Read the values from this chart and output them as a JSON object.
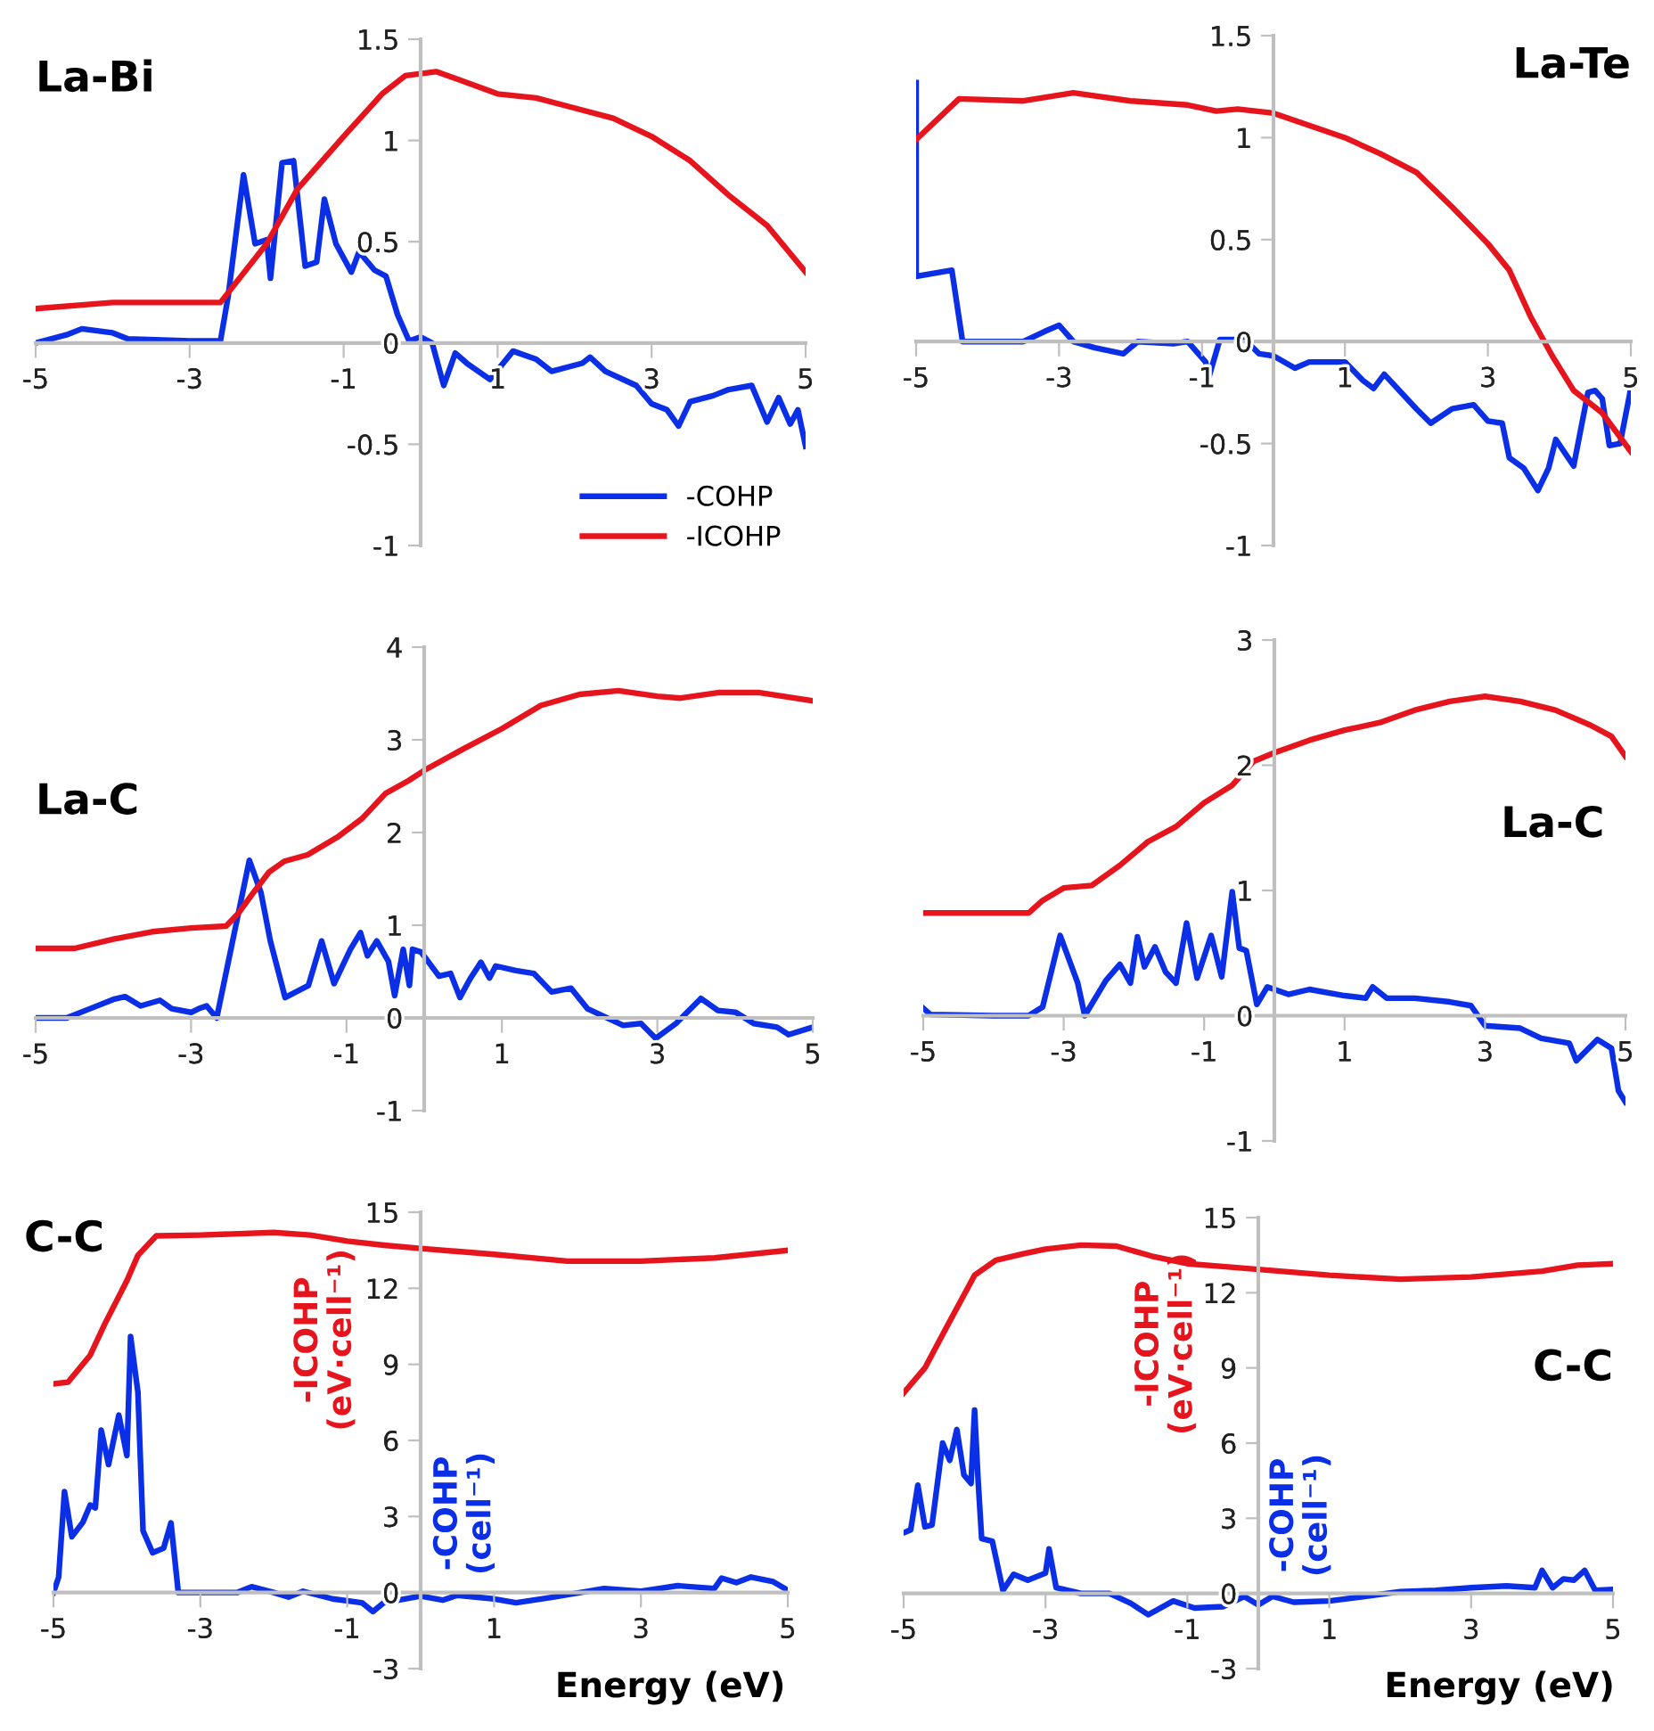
{
  "chart_data": [
    {
      "type": "line",
      "title": "La-Bi",
      "xlim": [
        -5,
        5
      ],
      "ylim": [
        -1,
        1.5
      ],
      "xticks": [
        -5,
        -3,
        -1,
        1,
        3,
        5
      ],
      "yticks": [
        -1,
        -0.5,
        0,
        0.5,
        1,
        1.5
      ],
      "legend": "bottom right",
      "series": [
        {
          "name": "-COHP",
          "color": "#0a2fe6",
          "x": [
            -5,
            -4.6,
            -4.4,
            -4,
            -3.8,
            -3,
            -2.6,
            -2.5,
            -2.3,
            -2.15,
            -2.0,
            -1.95,
            -1.8,
            -1.65,
            -1.5,
            -1.35,
            -1.25,
            -1.1,
            -0.9,
            -0.8,
            -0.6,
            -0.45,
            -0.3,
            -0.15,
            0,
            0.15,
            0.3,
            0.45,
            0.6,
            0.9,
            1.2,
            1.5,
            1.7,
            2.1,
            2.2,
            2.4,
            2.8,
            3.0,
            3.2,
            3.35,
            3.5,
            3.8,
            4.0,
            4.3,
            4.5,
            4.65,
            4.8,
            4.9,
            5
          ],
          "values": [
            0,
            0.04,
            0.07,
            0.05,
            0.02,
            0.01,
            0.01,
            0.23,
            0.83,
            0.49,
            0.51,
            0.32,
            0.89,
            0.9,
            0.38,
            0.4,
            0.71,
            0.49,
            0.35,
            0.45,
            0.36,
            0.33,
            0.14,
            0.01,
            0.03,
            0,
            -0.21,
            -0.05,
            -0.1,
            -0.18,
            -0.04,
            -0.08,
            -0.14,
            -0.1,
            -0.07,
            -0.14,
            -0.21,
            -0.3,
            -0.33,
            -0.41,
            -0.29,
            -0.26,
            -0.23,
            -0.21,
            -0.39,
            -0.27,
            -0.4,
            -0.33,
            -0.51
          ]
        },
        {
          "name": "-ICOHP",
          "color": "#e6141c",
          "x": [
            -5,
            -4,
            -2.6,
            -2,
            -1.6,
            -1,
            -0.5,
            -0.2,
            0.2,
            0.5,
            1,
            1.5,
            2,
            2.5,
            3,
            3.5,
            4,
            4.5,
            5
          ],
          "values": [
            0.17,
            0.2,
            0.2,
            0.49,
            0.76,
            1.02,
            1.23,
            1.32,
            1.34,
            1.3,
            1.23,
            1.21,
            1.16,
            1.11,
            1.02,
            0.9,
            0.73,
            0.58,
            0.35
          ]
        }
      ]
    },
    {
      "type": "line",
      "title": "La-Te",
      "xlim": [
        -5,
        5
      ],
      "ylim": [
        -1,
        1.5
      ],
      "xticks": [
        -5,
        -3,
        -1,
        1,
        3,
        5
      ],
      "yticks": [
        -1,
        -0.5,
        0,
        0.5,
        1,
        1.5
      ],
      "series": [
        {
          "color": "#0a2fe6",
          "x": [
            -5,
            -5,
            -4.5,
            -4.35,
            -3.5,
            -3.2,
            -3.0,
            -2.8,
            -2.5,
            -2.1,
            -1.9,
            -1.4,
            -1.2,
            -0.95,
            -0.9,
            -0.75,
            -0.4,
            -0.2,
            0,
            0.3,
            0.5,
            1.0,
            1.25,
            1.4,
            1.55,
            2.0,
            2.2,
            2.5,
            2.8,
            3.0,
            3.2,
            3.3,
            3.5,
            3.7,
            3.85,
            3.95,
            4.2,
            4.4,
            4.5,
            4.6,
            4.7,
            4.85,
            5.0
          ],
          "values": [
            1.27,
            0.32,
            0.35,
            0,
            0,
            0.05,
            0.08,
            0,
            -0.03,
            -0.06,
            0,
            -0.01,
            0,
            -0.1,
            -0.17,
            0.01,
            0.01,
            -0.06,
            -0.07,
            -0.13,
            -0.1,
            -0.1,
            -0.19,
            -0.23,
            -0.16,
            -0.33,
            -0.4,
            -0.33,
            -0.31,
            -0.39,
            -0.4,
            -0.57,
            -0.62,
            -0.73,
            -0.62,
            -0.48,
            -0.61,
            -0.25,
            -0.24,
            -0.28,
            -0.51,
            -0.5,
            -0.23
          ]
        },
        {
          "color": "#e6141c",
          "x": [
            -5,
            -4.4,
            -3.5,
            -2.8,
            -2,
            -1.2,
            -0.8,
            -0.5,
            0,
            0.5,
            1.0,
            1.5,
            2.0,
            2.5,
            3.0,
            3.3,
            3.6,
            3.9,
            4.2,
            4.6,
            5.0
          ],
          "values": [
            0.99,
            1.19,
            1.18,
            1.22,
            1.18,
            1.16,
            1.13,
            1.14,
            1.12,
            1.06,
            1.0,
            0.92,
            0.83,
            0.66,
            0.48,
            0.35,
            0.12,
            -0.07,
            -0.24,
            -0.35,
            -0.54
          ]
        }
      ]
    },
    {
      "type": "line",
      "title": "La-C",
      "xlim": [
        -5,
        5
      ],
      "ylim": [
        -1,
        4
      ],
      "xticks": [
        -5,
        -3,
        -1,
        1,
        3,
        5
      ],
      "yticks": [
        -1,
        0,
        1,
        2,
        3,
        4
      ],
      "series": [
        {
          "color": "#0a2fe6",
          "x": [
            -5,
            -4.6,
            -4.3,
            -4.0,
            -3.85,
            -3.65,
            -3.4,
            -3.25,
            -3.0,
            -2.9,
            -2.8,
            -2.67,
            -2.25,
            -2.1,
            -1.98,
            -1.79,
            -1.49,
            -1.32,
            -1.16,
            -0.95,
            -0.82,
            -0.73,
            -0.61,
            -0.46,
            -0.38,
            -0.27,
            -0.19,
            -0.15,
            -0.04,
            0.19,
            0.34,
            0.46,
            0.59,
            0.73,
            0.84,
            0.92,
            1.18,
            1.41,
            1.64,
            1.89,
            2.1,
            2.56,
            2.79,
            2.98,
            3.24,
            3.56,
            3.78,
            4.01,
            4.24,
            4.54,
            4.69,
            5.0
          ],
          "values": [
            0,
            0,
            0.1,
            0.2,
            0.23,
            0.13,
            0.19,
            0.1,
            0.06,
            0.1,
            0.13,
            0.0,
            1.7,
            1.35,
            0.83,
            0.22,
            0.35,
            0.83,
            0.37,
            0.74,
            0.92,
            0.67,
            0.83,
            0.61,
            0.24,
            0.74,
            0.35,
            0.74,
            0.71,
            0.45,
            0.48,
            0.22,
            0.42,
            0.6,
            0.43,
            0.56,
            0.51,
            0.48,
            0.28,
            0.32,
            0.1,
            -0.08,
            -0.06,
            -0.22,
            -0.06,
            0.21,
            0.08,
            0.06,
            -0.06,
            -0.1,
            -0.18,
            -0.1
          ]
        },
        {
          "color": "#e6141c",
          "x": [
            -5,
            -4.5,
            -4,
            -3.5,
            -3,
            -2.55,
            -2.4,
            -2.2,
            -2,
            -1.8,
            -1.5,
            -1.1,
            -0.8,
            -0.5,
            -0.2,
            0,
            0.5,
            1.0,
            1.5,
            2.0,
            2.5,
            3.0,
            3.3,
            3.8,
            4.3,
            5
          ],
          "values": [
            0.75,
            0.75,
            0.85,
            0.93,
            0.97,
            0.99,
            1.12,
            1.35,
            1.57,
            1.69,
            1.76,
            1.96,
            2.15,
            2.42,
            2.56,
            2.67,
            2.9,
            3.12,
            3.37,
            3.49,
            3.53,
            3.47,
            3.45,
            3.51,
            3.51,
            3.42
          ]
        }
      ]
    },
    {
      "type": "line",
      "title": "La-C",
      "xlim": [
        -5,
        5
      ],
      "ylim": [
        -1,
        3
      ],
      "xticks": [
        -5,
        -3,
        -1,
        1,
        3,
        5
      ],
      "yticks": [
        -1,
        0,
        1,
        2,
        3
      ],
      "series": [
        {
          "color": "#0a2fe6",
          "x": [
            -5,
            -4.9,
            -4,
            -3.5,
            -3.3,
            -3.05,
            -2.8,
            -2.7,
            -2.4,
            -2.2,
            -2.05,
            -1.95,
            -1.85,
            -1.7,
            -1.55,
            -1.4,
            -1.25,
            -1.1,
            -0.9,
            -0.75,
            -0.6,
            -0.5,
            -0.4,
            -0.25,
            -0.1,
            0.2,
            0.5,
            1.0,
            1.3,
            1.4,
            1.6,
            2.0,
            2.5,
            2.8,
            3.0,
            3.5,
            3.8,
            4.2,
            4.3,
            4.6,
            4.8,
            4.9,
            5.0
          ],
          "values": [
            0.06,
            0.01,
            0,
            0,
            0.07,
            0.64,
            0.26,
            0,
            0.28,
            0.41,
            0.26,
            0.63,
            0.39,
            0.55,
            0.35,
            0.26,
            0.74,
            0.3,
            0.64,
            0.31,
            0.99,
            0.54,
            0.52,
            0.09,
            0.23,
            0.17,
            0.21,
            0.16,
            0.14,
            0.23,
            0.14,
            0.14,
            0.11,
            0.08,
            -0.08,
            -0.1,
            -0.18,
            -0.22,
            -0.36,
            -0.19,
            -0.26,
            -0.6,
            -0.69
          ]
        },
        {
          "color": "#e6141c",
          "x": [
            -5,
            -3.5,
            -3.3,
            -3.0,
            -2.6,
            -2.2,
            -1.8,
            -1.4,
            -1.0,
            -0.6,
            -0.3,
            0,
            0.5,
            1.0,
            1.5,
            2.0,
            2.5,
            3.0,
            3.5,
            4.0,
            4.5,
            4.8,
            5.0
          ],
          "values": [
            0.82,
            0.82,
            0.92,
            1.02,
            1.04,
            1.2,
            1.39,
            1.51,
            1.7,
            1.84,
            2.03,
            2.1,
            2.2,
            2.28,
            2.34,
            2.44,
            2.51,
            2.55,
            2.51,
            2.44,
            2.32,
            2.23,
            2.07
          ]
        }
      ]
    },
    {
      "type": "line",
      "title": "C-C",
      "xlabel": "Energy (eV)",
      "xlim": [
        -5,
        5
      ],
      "ylim": [
        -3,
        15
      ],
      "xticks": [
        -5,
        -3,
        -1,
        1,
        3,
        5
      ],
      "yticks": [
        -3,
        0,
        3,
        6,
        9,
        12,
        15
      ],
      "annotations": [
        "-ICOHP\n(eV·cell⁻¹)",
        "-COHP\n(cell⁻¹)"
      ],
      "series": [
        {
          "color": "#0a2fe6",
          "x": [
            -5,
            -4.93,
            -4.85,
            -4.75,
            -4.6,
            -4.5,
            -4.43,
            -4.35,
            -4.25,
            -4.11,
            -4.0,
            -3.95,
            -3.85,
            -3.78,
            -3.65,
            -3.5,
            -3.4,
            -3.3,
            -2.5,
            -2.3,
            -2,
            -1.8,
            -1.6,
            -1.2,
            -0.8,
            -0.65,
            -0.5,
            0,
            0.3,
            0.5,
            1.0,
            1.3,
            1.8,
            2.5,
            3,
            3.5,
            4.0,
            4.1,
            4.3,
            4.5,
            4.8,
            5
          ],
          "values": [
            0,
            0.6,
            3.98,
            2.2,
            2.77,
            3.45,
            3.34,
            6.41,
            5.05,
            7.0,
            5.4,
            10.1,
            7.9,
            2.43,
            1.57,
            1.75,
            2.75,
            0,
            0,
            0.23,
            0,
            -0.18,
            0.05,
            -0.25,
            -0.4,
            -0.75,
            -0.4,
            -0.14,
            -0.3,
            -0.11,
            -0.25,
            -0.4,
            -0.18,
            0.16,
            0.05,
            0.27,
            0.16,
            0.57,
            0.39,
            0.61,
            0.43,
            0.09
          ]
        },
        {
          "color": "#e6141c",
          "x": [
            -5,
            -4.8,
            -4.5,
            -4.3,
            -4.0,
            -3.85,
            -3.6,
            -3,
            -2,
            -1.5,
            -1,
            -0.5,
            0,
            1,
            2,
            3,
            4,
            5
          ],
          "values": [
            8.23,
            8.3,
            9.36,
            10.6,
            12.3,
            13.3,
            14.07,
            14.1,
            14.2,
            14.1,
            13.86,
            13.7,
            13.57,
            13.34,
            13.07,
            13.07,
            13.2,
            13.5
          ]
        }
      ]
    },
    {
      "type": "line",
      "title": "C-C",
      "xlabel": "Energy (eV)",
      "xlim": [
        -5,
        5
      ],
      "ylim": [
        -3,
        15
      ],
      "xticks": [
        -5,
        -3,
        -1,
        1,
        3,
        5
      ],
      "yticks": [
        -3,
        0,
        3,
        6,
        9,
        12,
        15
      ],
      "annotations": [
        "-ICOHP\n(eV·cell⁻¹)",
        "-COHP\n(cell⁻¹)"
      ],
      "series": [
        {
          "color": "#0a2fe6",
          "x": [
            -5,
            -4.9,
            -4.8,
            -4.7,
            -4.6,
            -4.45,
            -4.35,
            -4.25,
            -4.15,
            -4.05,
            -4.0,
            -3.95,
            -3.9,
            -3.75,
            -3.6,
            -3.45,
            -3.25,
            -3.0,
            -2.95,
            -2.85,
            -2.5,
            -2.1,
            -1.8,
            -1.55,
            -1.2,
            -0.9,
            -0.5,
            -0.2,
            0,
            0.2,
            0.5,
            1.0,
            1.5,
            2.0,
            2.5,
            3.0,
            3.5,
            3.9,
            4.0,
            4.15,
            4.3,
            4.45,
            4.6,
            4.75,
            5.0
          ],
          "values": [
            2.42,
            2.54,
            4.32,
            2.66,
            2.73,
            6.0,
            5.31,
            6.54,
            4.73,
            4.39,
            7.32,
            4.5,
            2.19,
            2.08,
            0.12,
            0.76,
            0.53,
            0.81,
            1.78,
            0.23,
            0,
            0,
            -0.39,
            -0.85,
            -0.3,
            -0.58,
            -0.53,
            -0.12,
            -0.46,
            -0.12,
            -0.35,
            -0.3,
            -0.12,
            0.07,
            0.12,
            0.23,
            0.3,
            0.23,
            0.92,
            0.23,
            0.58,
            0.53,
            0.92,
            0.12,
            0.16
          ]
        },
        {
          "color": "#e6141c",
          "x": [
            -5,
            -4.7,
            -4.4,
            -4.0,
            -3.7,
            -3.3,
            -3.0,
            -2.5,
            -2,
            -1.5,
            -1,
            -0.5,
            0,
            1,
            2,
            3,
            4,
            4.5,
            5
          ],
          "values": [
            8.0,
            9.0,
            10.6,
            12.7,
            13.3,
            13.56,
            13.74,
            13.9,
            13.86,
            13.46,
            13.16,
            13.05,
            12.93,
            12.7,
            12.54,
            12.63,
            12.86,
            13.1,
            13.16
          ]
        }
      ]
    }
  ]
}
